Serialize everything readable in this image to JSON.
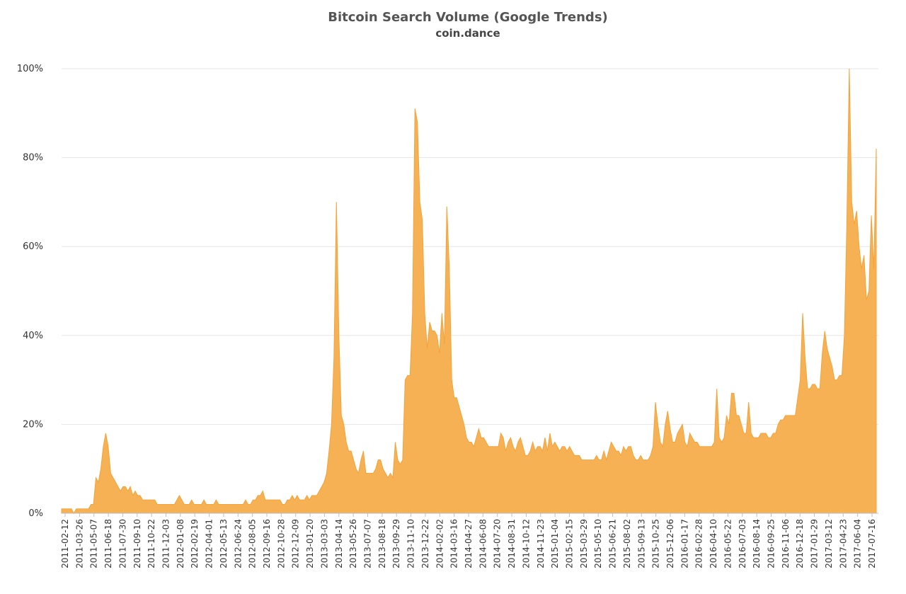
{
  "chart_data": {
    "type": "area",
    "title": "Bitcoin Search Volume (Google Trends)",
    "subtitle": "coin.dance",
    "xlabel": "",
    "ylabel": "",
    "ylim": [
      0,
      100
    ],
    "y_tick_labels": [
      "0%",
      "20%",
      "40%",
      "60%",
      "80%",
      "100%"
    ],
    "y_ticks": [
      0,
      20,
      40,
      60,
      80,
      100
    ],
    "grid": true,
    "legend": "none",
    "color": "#f7b155",
    "x_tick_labels": [
      "2011-02-12",
      "2011-03-26",
      "2011-05-07",
      "2011-06-18",
      "2011-07-30",
      "2011-09-10",
      "2011-10-22",
      "2011-12-03",
      "2012-01-08",
      "2012-02-19",
      "2012-04-01",
      "2012-05-13",
      "2012-06-24",
      "2012-08-05",
      "2012-09-16",
      "2012-10-28",
      "2012-12-09",
      "2013-01-20",
      "2013-03-03",
      "2013-04-14",
      "2013-05-26",
      "2013-07-07",
      "2013-08-18",
      "2013-09-29",
      "2013-11-10",
      "2013-12-22",
      "2014-02-02",
      "2014-03-16",
      "2014-04-27",
      "2014-06-08",
      "2014-07-20",
      "2014-08-31",
      "2014-10-12",
      "2014-11-23",
      "2015-01-04",
      "2015-02-15",
      "2015-03-29",
      "2015-05-10",
      "2015-06-21",
      "2015-08-02",
      "2015-09-13",
      "2015-10-25",
      "2015-12-06",
      "2016-01-17",
      "2016-02-28",
      "2016-04-10",
      "2016-05-22",
      "2016-07-03",
      "2016-08-14",
      "2016-09-25",
      "2016-11-06",
      "2016-12-18",
      "2017-01-29",
      "2017-03-12",
      "2017-04-23",
      "2017-06-04",
      "2017-07-16"
    ],
    "series": [
      {
        "values": [
          1,
          1,
          1,
          1,
          1,
          0,
          1,
          1,
          1,
          1,
          1,
          1,
          2,
          2,
          8,
          7,
          10,
          15,
          18,
          15,
          9,
          8,
          7,
          6,
          5,
          6,
          6,
          5,
          6,
          4,
          5,
          4,
          4,
          3,
          3,
          3,
          3,
          3,
          3,
          2,
          2,
          2,
          2,
          2,
          2,
          2,
          2,
          3,
          4,
          3,
          2,
          2,
          2,
          3,
          2,
          2,
          2,
          2,
          3,
          2,
          2,
          2,
          2,
          3,
          2,
          2,
          2,
          2,
          2,
          2,
          2,
          2,
          2,
          2,
          2,
          3,
          2,
          2,
          3,
          3,
          4,
          4,
          5,
          3,
          3,
          3,
          3,
          3,
          3,
          3,
          2,
          2,
          3,
          3,
          4,
          3,
          4,
          3,
          3,
          3,
          4,
          3,
          4,
          4,
          4,
          5,
          6,
          7,
          9,
          14,
          20,
          35,
          70,
          40,
          22,
          20,
          16,
          14,
          14,
          12,
          10,
          9,
          12,
          14,
          9,
          9,
          9,
          9,
          10,
          12,
          12,
          10,
          9,
          8,
          9,
          8,
          16,
          12,
          11,
          12,
          30,
          31,
          31,
          45,
          91,
          88,
          70,
          66,
          45,
          37,
          43,
          41,
          41,
          40,
          36,
          45,
          38,
          69,
          55,
          30,
          26,
          26,
          24,
          22,
          20,
          17,
          16,
          16,
          15,
          17,
          19,
          17,
          17,
          16,
          15,
          15,
          15,
          15,
          15,
          18,
          17,
          14,
          16,
          17,
          15,
          14,
          16,
          17,
          15,
          13,
          13,
          14,
          16,
          14,
          15,
          15,
          14,
          17,
          14,
          18,
          15,
          16,
          15,
          14,
          15,
          15,
          14,
          15,
          14,
          13,
          13,
          13,
          12,
          12,
          12,
          12,
          12,
          12,
          13,
          12,
          12,
          14,
          12,
          14,
          16,
          15,
          14,
          14,
          13,
          15,
          14,
          15,
          15,
          13,
          12,
          12,
          13,
          12,
          12,
          12,
          13,
          15,
          25,
          20,
          16,
          15,
          20,
          23,
          19,
          16,
          16,
          18,
          19,
          20,
          16,
          15,
          18,
          17,
          16,
          16,
          15,
          15,
          15,
          15,
          15,
          15,
          16,
          28,
          17,
          16,
          17,
          22,
          20,
          27,
          27,
          22,
          22,
          20,
          18,
          18,
          25,
          18,
          17,
          17,
          17,
          18,
          18,
          18,
          17,
          17,
          18,
          18,
          20,
          21,
          21,
          22,
          22,
          22,
          22,
          22,
          26,
          30,
          45,
          35,
          28,
          28,
          29,
          29,
          28,
          28,
          36,
          41,
          37,
          35,
          33,
          30,
          30,
          31,
          31,
          40,
          65,
          100,
          70,
          65,
          68,
          60,
          55,
          58,
          48,
          50,
          67,
          55,
          82
        ]
      }
    ]
  }
}
